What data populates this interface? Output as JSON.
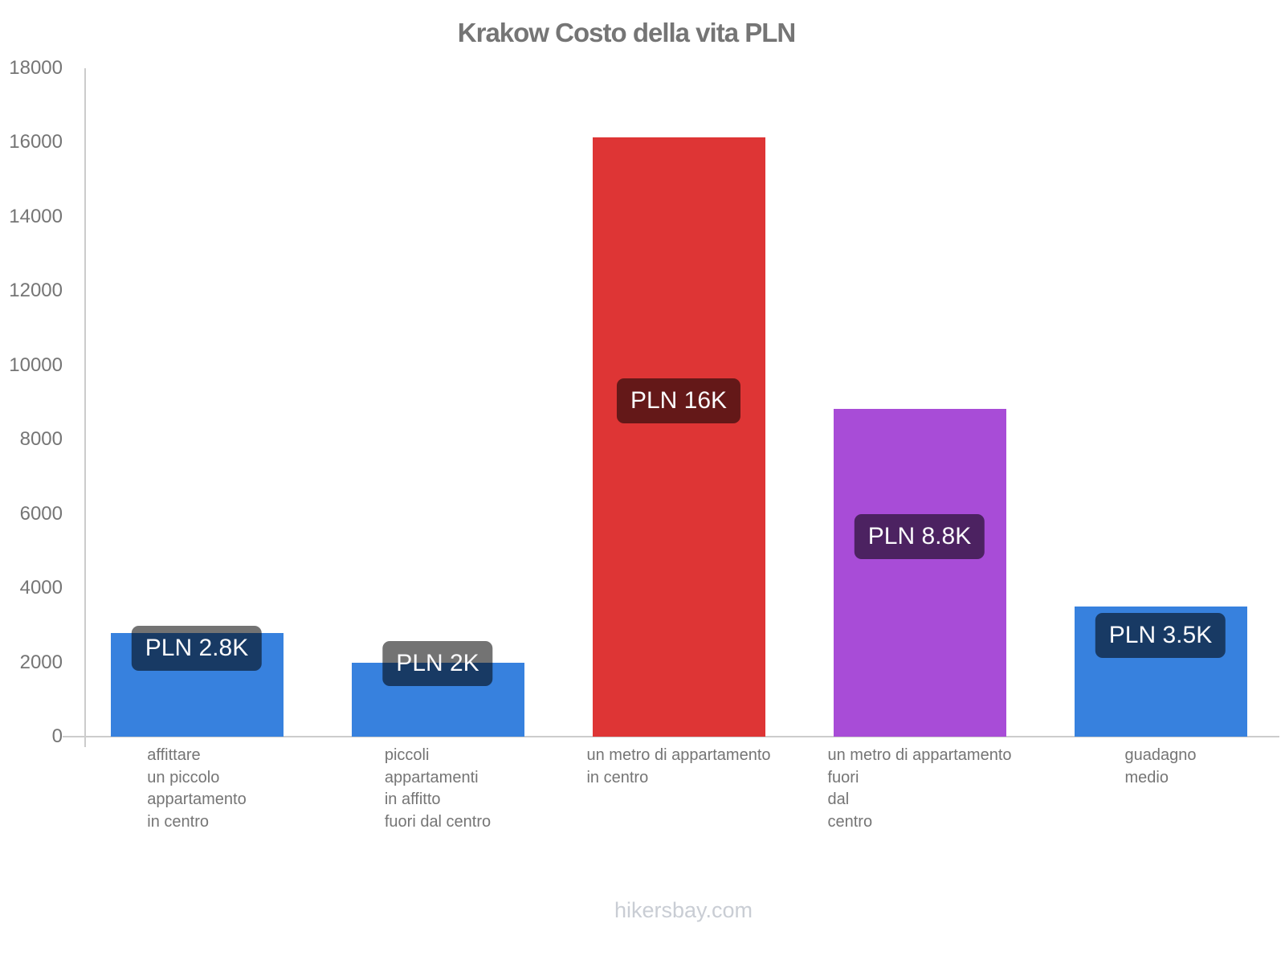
{
  "title": "Krakow Costo della vita PLN",
  "footer": "hikersbay.com",
  "colors": {
    "blue": "#3781DE",
    "red": "#DE3535",
    "purple": "#A84CD7",
    "axis": "#cccccc",
    "text": "#757575",
    "badge_bg": "rgba(0,0,0,0.55)",
    "badge_text": "#fbfbfd",
    "watermark_text": "#c9cdd4"
  },
  "chart_data": {
    "type": "bar",
    "title": "Krakow Costo della vita PLN",
    "categories": [
      [
        "affittare",
        "un piccolo",
        "appartamento",
        "in centro"
      ],
      [
        "piccoli",
        "appartamenti",
        "in affitto",
        "fuori dal centro"
      ],
      [
        "un metro di appartamento",
        "in centro"
      ],
      [
        "un metro di appartamento",
        "fuori",
        "dal",
        "centro"
      ],
      [
        "guadagno",
        "medio"
      ]
    ],
    "values": [
      2800,
      2000,
      16150,
      8830,
      3500
    ],
    "value_labels": [
      "PLN 2.8K",
      "PLN 2K",
      "PLN 16K",
      "PLN 8.8K",
      "PLN 3.5K"
    ],
    "bar_colors": [
      "#3781DE",
      "#3781DE",
      "#DE3535",
      "#A84CD7",
      "#3781DE"
    ],
    "xlabel": "",
    "ylabel": "",
    "ylim": [
      0,
      18000
    ],
    "yticks": [
      0,
      2000,
      4000,
      6000,
      8000,
      10000,
      12000,
      14000,
      16000,
      18000
    ],
    "grid": false,
    "legend": false,
    "watermark": "hikersbay.com"
  }
}
